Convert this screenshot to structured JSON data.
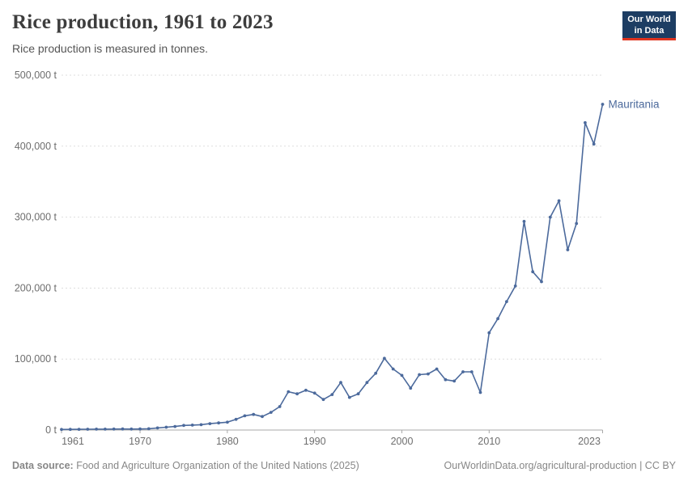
{
  "header": {
    "title": "Rice production, 1961 to 2023",
    "subtitle": "Rice production is measured in tonnes.",
    "logo": {
      "line1": "Our World",
      "line2": "in Data"
    }
  },
  "footer": {
    "source_label": "Data source:",
    "source_text": "Food and Agriculture Organization of the United Nations (2025)",
    "right_text": "OurWorldinData.org/agricultural-production | CC BY"
  },
  "colors": {
    "series_blue": "#4C6A9C",
    "gridline": "#dddddd",
    "axis": "#a8a8a8",
    "tick_text": "#6e6e6e",
    "logo_navy": "#1d3d63",
    "logo_red": "#e0341f"
  },
  "chart_data": {
    "type": "line",
    "title": "Rice production, 1961 to 2023",
    "subtitle": "Rice production is measured in tonnes.",
    "unit": "t",
    "xlim": [
      1961,
      2023
    ],
    "ylim": [
      0,
      500000
    ],
    "grid": "horizontal-dashed",
    "legend_position": "end-of-line-label",
    "xticks": [
      1961,
      1970,
      1980,
      1990,
      2000,
      2010,
      2023
    ],
    "yticks": [
      0,
      100000,
      200000,
      300000,
      400000,
      500000
    ],
    "ytick_labels": [
      "0 t",
      "100,000 t",
      "200,000 t",
      "300,000 t",
      "400,000 t",
      "500,000 t"
    ],
    "series": [
      {
        "name": "Mauritania",
        "color": "#4C6A9C",
        "years": [
          1961,
          1962,
          1963,
          1964,
          1965,
          1966,
          1967,
          1968,
          1969,
          1970,
          1971,
          1972,
          1973,
          1974,
          1975,
          1976,
          1977,
          1978,
          1979,
          1980,
          1981,
          1982,
          1983,
          1984,
          1985,
          1986,
          1987,
          1988,
          1989,
          1990,
          1991,
          1992,
          1993,
          1994,
          1995,
          1996,
          1997,
          1998,
          1999,
          2000,
          2001,
          2002,
          2003,
          2004,
          2005,
          2006,
          2007,
          2008,
          2009,
          2010,
          2011,
          2012,
          2013,
          2014,
          2015,
          2016,
          2017,
          2018,
          2019,
          2020,
          2021,
          2022,
          2023
        ],
        "values": [
          800,
          900,
          1000,
          1100,
          1200,
          1300,
          1400,
          1500,
          1400,
          1500,
          1800,
          3000,
          4000,
          5000,
          6500,
          7000,
          7500,
          9000,
          10000,
          11000,
          15000,
          20000,
          22000,
          19000,
          25000,
          33000,
          54000,
          51000,
          56000,
          52000,
          43000,
          50000,
          67000,
          46000,
          51000,
          67000,
          80000,
          101000,
          86000,
          77000,
          59000,
          78000,
          79000,
          86000,
          71000,
          69000,
          82000,
          82000,
          53000,
          137000,
          157000,
          181000,
          203000,
          294000,
          223000,
          209000,
          300000,
          323000,
          254000,
          291000,
          433000,
          403000,
          459000
        ]
      }
    ]
  }
}
